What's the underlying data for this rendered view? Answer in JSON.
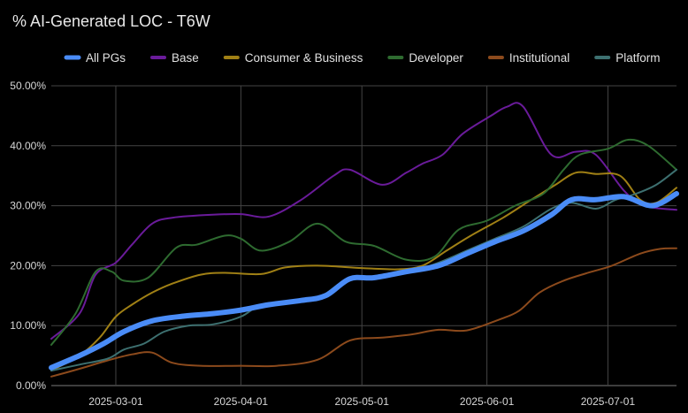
{
  "chart_data": {
    "type": "line",
    "title": "% AI-Generated LOC - T6W",
    "xlabel": "",
    "ylabel": "",
    "x_start": "2025-02-13",
    "x_end": "2025-07-18",
    "x_ticks": [
      "2025-03-01",
      "2025-04-01",
      "2025-05-01",
      "2025-06-01",
      "2025-07-01"
    ],
    "y_ticks": [
      0,
      10,
      20,
      30,
      40,
      50
    ],
    "y_tick_labels": [
      "0.00%",
      "10.00%",
      "20.00%",
      "30.00%",
      "40.00%",
      "50.00%"
    ],
    "ylim": [
      0,
      50
    ],
    "grid": true,
    "legend_position": "top",
    "series": [
      {
        "name": "Base",
        "color": "#6a1b9a",
        "points": [
          [
            "2025-02-13",
            7.8
          ],
          [
            "2025-02-20",
            12.0
          ],
          [
            "2025-02-24",
            18.5
          ],
          [
            "2025-03-01",
            20.5
          ],
          [
            "2025-03-05",
            23.5
          ],
          [
            "2025-03-10",
            27.0
          ],
          [
            "2025-03-15",
            28.0
          ],
          [
            "2025-03-25",
            28.5
          ],
          [
            "2025-04-01",
            28.6
          ],
          [
            "2025-04-08",
            28.2
          ],
          [
            "2025-04-16",
            31.0
          ],
          [
            "2025-04-24",
            35.0
          ],
          [
            "2025-04-28",
            36.0
          ],
          [
            "2025-05-06",
            33.5
          ],
          [
            "2025-05-12",
            35.5
          ],
          [
            "2025-05-16",
            37.0
          ],
          [
            "2025-05-21",
            38.5
          ],
          [
            "2025-05-26",
            42.0
          ],
          [
            "2025-06-02",
            45.0
          ],
          [
            "2025-06-06",
            46.5
          ],
          [
            "2025-06-10",
            46.5
          ],
          [
            "2025-06-17",
            38.5
          ],
          [
            "2025-06-23",
            39.0
          ],
          [
            "2025-06-28",
            38.5
          ],
          [
            "2025-07-05",
            32.5
          ],
          [
            "2025-07-10",
            30.0
          ],
          [
            "2025-07-18",
            29.3
          ]
        ]
      },
      {
        "name": "Consumer & Business",
        "color": "#a08015",
        "points": [
          [
            "2025-02-13",
            2.5
          ],
          [
            "2025-02-20",
            5.0
          ],
          [
            "2025-02-25",
            8.0
          ],
          [
            "2025-03-01",
            11.5
          ],
          [
            "2025-03-05",
            13.5
          ],
          [
            "2025-03-10",
            15.5
          ],
          [
            "2025-03-15",
            17.0
          ],
          [
            "2025-03-22",
            18.5
          ],
          [
            "2025-03-28",
            18.8
          ],
          [
            "2025-04-06",
            18.6
          ],
          [
            "2025-04-12",
            19.7
          ],
          [
            "2025-04-20",
            20.0
          ],
          [
            "2025-05-01",
            19.6
          ],
          [
            "2025-05-10",
            19.4
          ],
          [
            "2025-05-16",
            20.0
          ],
          [
            "2025-05-22",
            22.5
          ],
          [
            "2025-05-28",
            25.0
          ],
          [
            "2025-06-05",
            28.0
          ],
          [
            "2025-06-12",
            31.0
          ],
          [
            "2025-06-18",
            33.5
          ],
          [
            "2025-06-23",
            35.5
          ],
          [
            "2025-06-28",
            35.3
          ],
          [
            "2025-07-04",
            35.0
          ],
          [
            "2025-07-09",
            31.0
          ],
          [
            "2025-07-13",
            30.5
          ],
          [
            "2025-07-18",
            33.0
          ]
        ]
      },
      {
        "name": "Developer",
        "color": "#2e6b30",
        "points": [
          [
            "2025-02-13",
            6.8
          ],
          [
            "2025-02-19",
            12.0
          ],
          [
            "2025-02-24",
            19.0
          ],
          [
            "2025-02-28",
            19.0
          ],
          [
            "2025-03-03",
            17.5
          ],
          [
            "2025-03-09",
            18.0
          ],
          [
            "2025-03-16",
            23.0
          ],
          [
            "2025-03-21",
            23.5
          ],
          [
            "2025-03-28",
            25.0
          ],
          [
            "2025-04-01",
            24.5
          ],
          [
            "2025-04-06",
            22.5
          ],
          [
            "2025-04-13",
            24.0
          ],
          [
            "2025-04-20",
            27.0
          ],
          [
            "2025-04-27",
            24.0
          ],
          [
            "2025-05-04",
            23.3
          ],
          [
            "2025-05-12",
            21.0
          ],
          [
            "2025-05-19",
            21.5
          ],
          [
            "2025-05-25",
            26.0
          ],
          [
            "2025-06-01",
            27.5
          ],
          [
            "2025-06-08",
            30.0
          ],
          [
            "2025-06-15",
            32.0
          ],
          [
            "2025-06-20",
            36.0
          ],
          [
            "2025-06-24",
            38.5
          ],
          [
            "2025-07-01",
            39.5
          ],
          [
            "2025-07-06",
            41.0
          ],
          [
            "2025-07-11",
            40.0
          ],
          [
            "2025-07-18",
            36.0
          ]
        ]
      },
      {
        "name": "Institutional",
        "color": "#8c4a1c",
        "points": [
          [
            "2025-02-13",
            1.5
          ],
          [
            "2025-02-20",
            2.8
          ],
          [
            "2025-02-27",
            4.2
          ],
          [
            "2025-03-05",
            5.2
          ],
          [
            "2025-03-10",
            5.5
          ],
          [
            "2025-03-15",
            3.8
          ],
          [
            "2025-03-22",
            3.3
          ],
          [
            "2025-04-01",
            3.3
          ],
          [
            "2025-04-10",
            3.3
          ],
          [
            "2025-04-20",
            4.3
          ],
          [
            "2025-04-28",
            7.5
          ],
          [
            "2025-05-06",
            8.0
          ],
          [
            "2025-05-13",
            8.5
          ],
          [
            "2025-05-20",
            9.3
          ],
          [
            "2025-05-27",
            9.2
          ],
          [
            "2025-06-04",
            11.0
          ],
          [
            "2025-06-09",
            12.5
          ],
          [
            "2025-06-14",
            15.5
          ],
          [
            "2025-06-20",
            17.5
          ],
          [
            "2025-06-27",
            19.0
          ],
          [
            "2025-07-02",
            20.0
          ],
          [
            "2025-07-09",
            22.0
          ],
          [
            "2025-07-14",
            22.8
          ],
          [
            "2025-07-18",
            22.9
          ]
        ]
      },
      {
        "name": "Platform",
        "color": "#3d7070",
        "points": [
          [
            "2025-02-13",
            2.5
          ],
          [
            "2025-02-20",
            3.5
          ],
          [
            "2025-02-27",
            4.5
          ],
          [
            "2025-03-03",
            6.0
          ],
          [
            "2025-03-08",
            7.0
          ],
          [
            "2025-03-13",
            9.0
          ],
          [
            "2025-03-19",
            10.0
          ],
          [
            "2025-03-25",
            10.2
          ],
          [
            "2025-04-01",
            11.5
          ],
          [
            "2025-04-06",
            13.5
          ],
          [
            "2025-04-13",
            14.0
          ],
          [
            "2025-04-20",
            14.5
          ],
          [
            "2025-04-27",
            17.5
          ],
          [
            "2025-05-06",
            18.3
          ],
          [
            "2025-05-13",
            19.0
          ],
          [
            "2025-05-20",
            20.5
          ],
          [
            "2025-05-27",
            22.5
          ],
          [
            "2025-06-03",
            24.5
          ],
          [
            "2025-06-10",
            26.5
          ],
          [
            "2025-06-17",
            29.5
          ],
          [
            "2025-06-22",
            30.5
          ],
          [
            "2025-06-28",
            29.5
          ],
          [
            "2025-07-03",
            31.0
          ],
          [
            "2025-07-08",
            32.0
          ],
          [
            "2025-07-13",
            33.5
          ],
          [
            "2025-07-18",
            36.0
          ]
        ]
      },
      {
        "name": "All PGs",
        "color": "#4a8cf7",
        "points": [
          [
            "2025-02-13",
            3.0
          ],
          [
            "2025-02-20",
            5.0
          ],
          [
            "2025-02-26",
            7.0
          ],
          [
            "2025-03-03",
            9.0
          ],
          [
            "2025-03-10",
            10.8
          ],
          [
            "2025-03-18",
            11.6
          ],
          [
            "2025-03-25",
            12.0
          ],
          [
            "2025-04-01",
            12.6
          ],
          [
            "2025-04-08",
            13.5
          ],
          [
            "2025-04-16",
            14.2
          ],
          [
            "2025-04-22",
            15.0
          ],
          [
            "2025-04-28",
            17.8
          ],
          [
            "2025-05-04",
            18.0
          ],
          [
            "2025-05-12",
            19.0
          ],
          [
            "2025-05-20",
            20.0
          ],
          [
            "2025-05-27",
            22.0
          ],
          [
            "2025-06-03",
            24.0
          ],
          [
            "2025-06-10",
            25.8
          ],
          [
            "2025-06-17",
            28.5
          ],
          [
            "2025-06-22",
            31.0
          ],
          [
            "2025-06-28",
            31.0
          ],
          [
            "2025-07-05",
            31.5
          ],
          [
            "2025-07-12",
            30.0
          ],
          [
            "2025-07-18",
            32.0
          ]
        ]
      }
    ],
    "legend_order": [
      "All PGs",
      "Base",
      "Consumer & Business",
      "Developer",
      "Institutional",
      "Platform"
    ]
  }
}
